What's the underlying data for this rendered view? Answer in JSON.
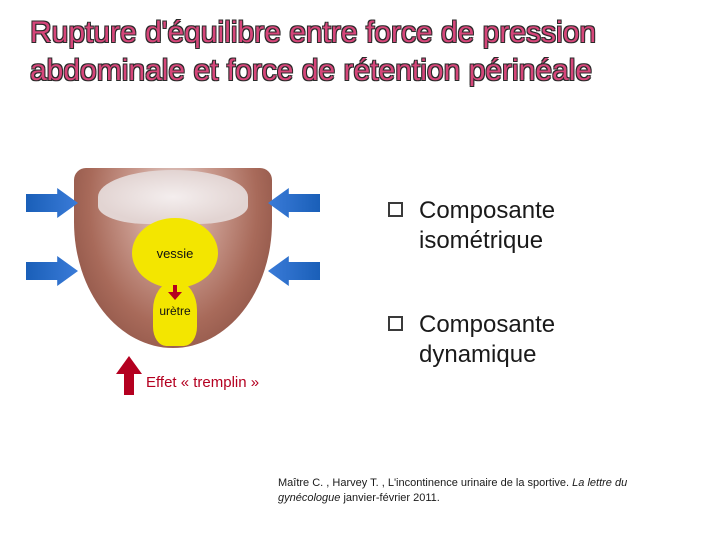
{
  "title": "Rupture d'équilibre entre force de pression abdominale et force de rétention périnéale",
  "diagram": {
    "vessie_label": "vessie",
    "uretre_label": "urètre",
    "tremplin_label": "Effet « tremplin »",
    "colors": {
      "blue_arrow": "#2a6bc8",
      "red_arrow": "#b40020",
      "yellow_shape": "#f3e600",
      "anatomy_base": "#a86a5a"
    }
  },
  "bullets": {
    "items": [
      {
        "text": "Composante isométrique"
      },
      {
        "text": "Composante dynamique"
      }
    ]
  },
  "citation": {
    "authors": "Maître C. , Harvey T. , L'incontinence urinaire de la sportive. ",
    "journal": "La lettre du gynécologue ",
    "date": "janvier-février 2011."
  }
}
